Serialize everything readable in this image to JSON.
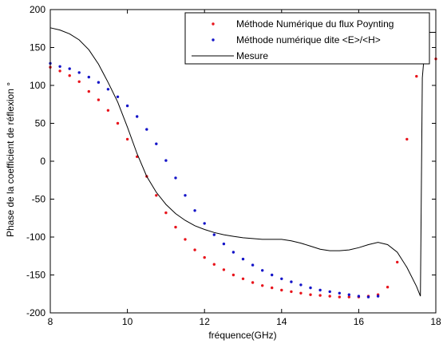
{
  "chart_data": {
    "type": "scatter",
    "xlabel": "fréquence(GHz)",
    "ylabel": "Phase de la coefficient de réflexion °",
    "xlim": [
      8,
      18
    ],
    "ylim": [
      -200,
      200
    ],
    "xticks": [
      8,
      10,
      12,
      14,
      16,
      18
    ],
    "yticks": [
      -200,
      -150,
      -100,
      -50,
      0,
      50,
      100,
      150,
      200
    ],
    "legend_position": "top-right",
    "colors": {
      "series1": "#e8141c",
      "series2": "#1414c8",
      "series3": "#000000"
    },
    "series": [
      {
        "name": "Méthode Numérique du flux Poynting",
        "style": "dots",
        "x": [
          8.0,
          8.25,
          8.5,
          8.75,
          9.0,
          9.25,
          9.5,
          9.75,
          10.0,
          10.25,
          10.5,
          10.75,
          11.0,
          11.25,
          11.5,
          11.75,
          12.0,
          12.25,
          12.5,
          12.75,
          13.0,
          13.25,
          13.5,
          13.75,
          14.0,
          14.25,
          14.5,
          14.75,
          15.0,
          15.25,
          15.5,
          15.75,
          16.0,
          16.25,
          16.5,
          16.75,
          17.0,
          17.25,
          17.5,
          17.75,
          18.0
        ],
        "y": [
          124,
          119,
          113,
          105,
          92,
          81,
          67,
          50,
          29,
          6,
          -20,
          -45,
          -68,
          -87,
          -103,
          -117,
          -127,
          -136,
          -143,
          -150,
          -155,
          -160,
          -164,
          -167,
          -170,
          -172,
          -174,
          -176,
          -177,
          -178,
          -179,
          -179,
          -179,
          -178,
          -176,
          -166,
          -133,
          29,
          112,
          159,
          135
        ]
      },
      {
        "name": "Méthode numérique dite <E>/<H>",
        "style": "dots",
        "x": [
          8.0,
          8.25,
          8.5,
          8.75,
          9.0,
          9.25,
          9.5,
          9.75,
          10.0,
          10.25,
          10.5,
          10.75,
          11.0,
          11.25,
          11.5,
          11.75,
          12.0,
          12.25,
          12.5,
          12.75,
          13.0,
          13.25,
          13.5,
          13.75,
          14.0,
          14.25,
          14.5,
          14.75,
          15.0,
          15.25,
          15.5,
          15.75,
          16.0,
          16.25,
          16.5
        ],
        "y": [
          129,
          125,
          122,
          117,
          111,
          104,
          95,
          85,
          73,
          59,
          42,
          23,
          1,
          -22,
          -45,
          -65,
          -82,
          -97,
          -109,
          -120,
          -129,
          -137,
          -144,
          -150,
          -155,
          -159,
          -163,
          -167,
          -170,
          -172,
          -174,
          -176,
          -178,
          -179,
          -178
        ]
      },
      {
        "name": "Mesure",
        "style": "line",
        "x": [
          8.0,
          8.25,
          8.5,
          8.75,
          9.0,
          9.25,
          9.5,
          9.75,
          10.0,
          10.25,
          10.5,
          10.75,
          11.0,
          11.25,
          11.5,
          11.75,
          12.0,
          12.25,
          12.5,
          12.75,
          13.0,
          13.25,
          13.5,
          13.75,
          14.0,
          14.25,
          14.5,
          14.75,
          15.0,
          15.25,
          15.5,
          15.75,
          16.0,
          16.25,
          16.5,
          16.75,
          17.0,
          17.25,
          17.5,
          17.6,
          17.65,
          17.75,
          18.0
        ],
        "y": [
          176,
          173,
          168,
          160,
          147,
          128,
          104,
          78,
          45,
          10,
          -20,
          -41,
          -57,
          -69,
          -78,
          -85,
          -90,
          -94,
          -97,
          -99,
          -101,
          -102,
          -103,
          -103,
          -103,
          -105,
          -108,
          -112,
          -116,
          -118,
          -118,
          -117,
          -114,
          -110,
          -107,
          -110,
          -120,
          -140,
          -165,
          -178,
          110,
          170,
          170
        ]
      }
    ]
  }
}
